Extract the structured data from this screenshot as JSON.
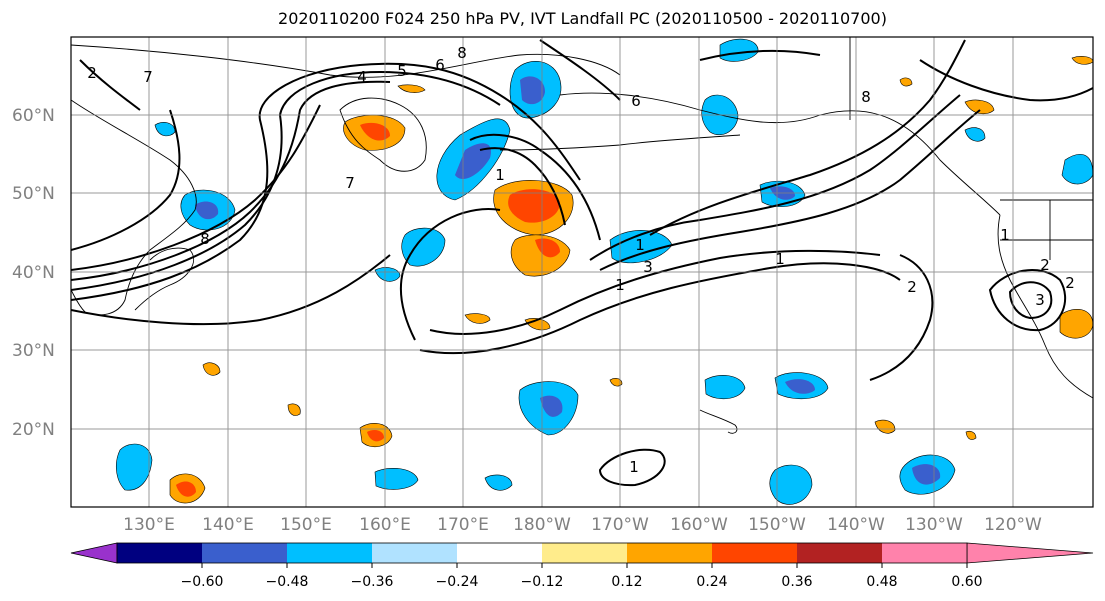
{
  "title": "2020110200 F024 250 hPa PV, IVT Landfall PC (2020110500 - 2020110700)",
  "lat_labels": [
    "60°N",
    "50°N",
    "40°N",
    "30°N",
    "20°N"
  ],
  "lon_labels": [
    "130°E",
    "140°E",
    "150°E",
    "160°E",
    "170°E",
    "180°W",
    "170°W",
    "160°W",
    "150°W",
    "140°W",
    "130°W",
    "120°W"
  ],
  "colorbar": {
    "colors": [
      "#9932cc",
      "#000080",
      "#3a5fcd",
      "#00bfff",
      "#b0e2ff",
      "#ffffff",
      "#ffec8b",
      "#ffa500",
      "#ff4500",
      "#b22222",
      "#ff82ab"
    ],
    "tick_labels": [
      "−0.60",
      "−0.48",
      "−0.36",
      "−0.24",
      "−0.12",
      "0.12",
      "0.24",
      "0.36",
      "0.48",
      "0.60"
    ]
  },
  "contour_labels": [
    "1",
    "2",
    "3",
    "4",
    "5",
    "6",
    "7",
    "8",
    "1",
    "2",
    "1",
    "1",
    "7",
    "8",
    "1",
    "2",
    "2",
    "1",
    "3",
    "6",
    "8"
  ]
}
